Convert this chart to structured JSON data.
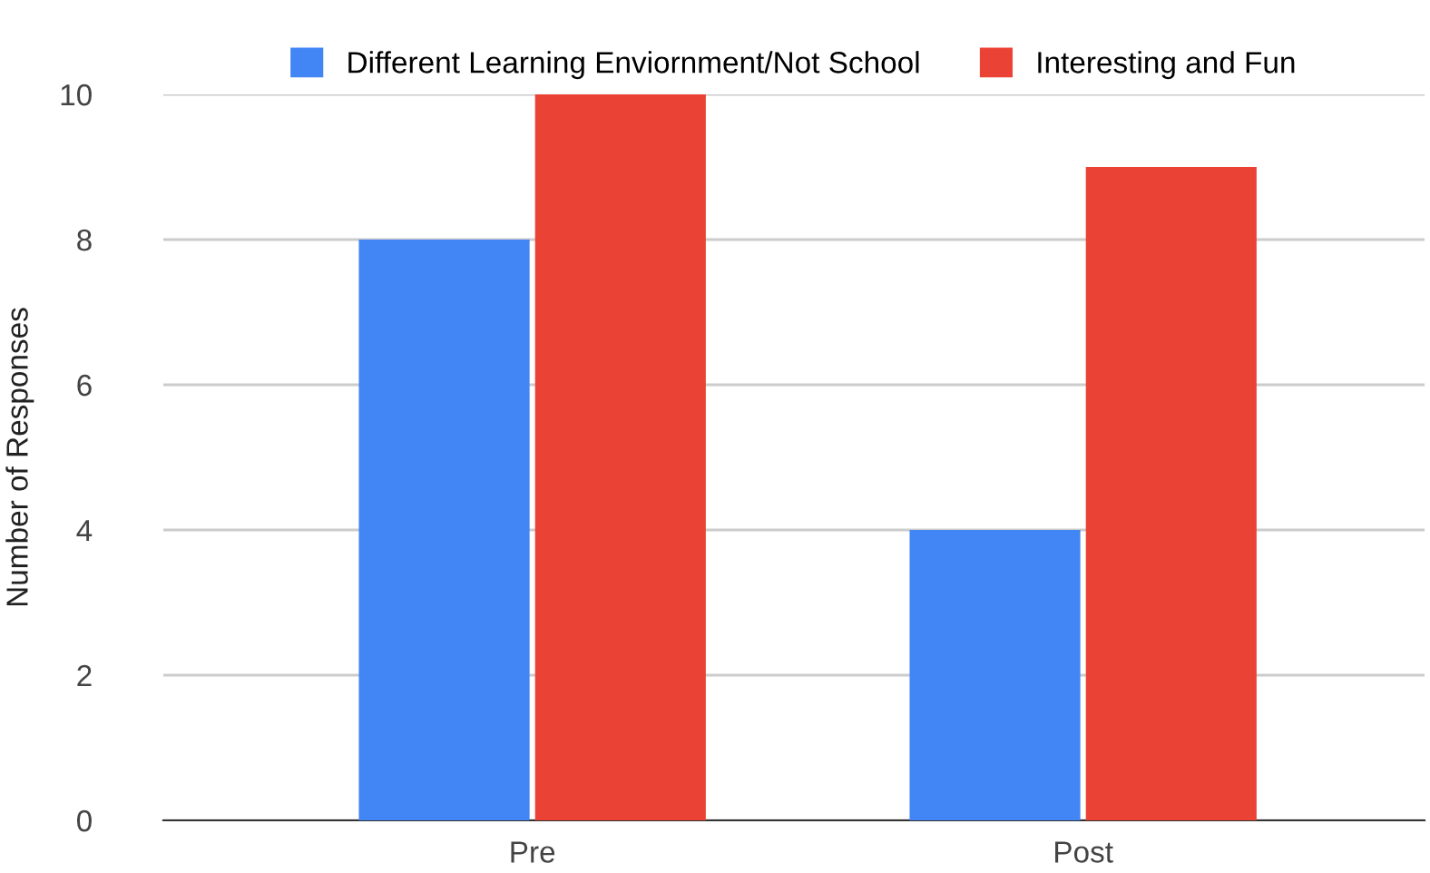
{
  "chart_data": {
    "type": "bar",
    "ylabel": "Number of Responses",
    "categories": [
      "Pre",
      "Post"
    ],
    "series": [
      {
        "name": "Different Learning Enviornment/Not School",
        "color": "#4285f4",
        "values": [
          8,
          4
        ]
      },
      {
        "name": "Interesting and Fun",
        "color": "#ea4335",
        "values": [
          10,
          9
        ]
      }
    ],
    "ylim": [
      0,
      10
    ],
    "yticks": [
      0,
      2,
      4,
      6,
      8,
      10
    ],
    "grid": "y",
    "legend": "top"
  }
}
